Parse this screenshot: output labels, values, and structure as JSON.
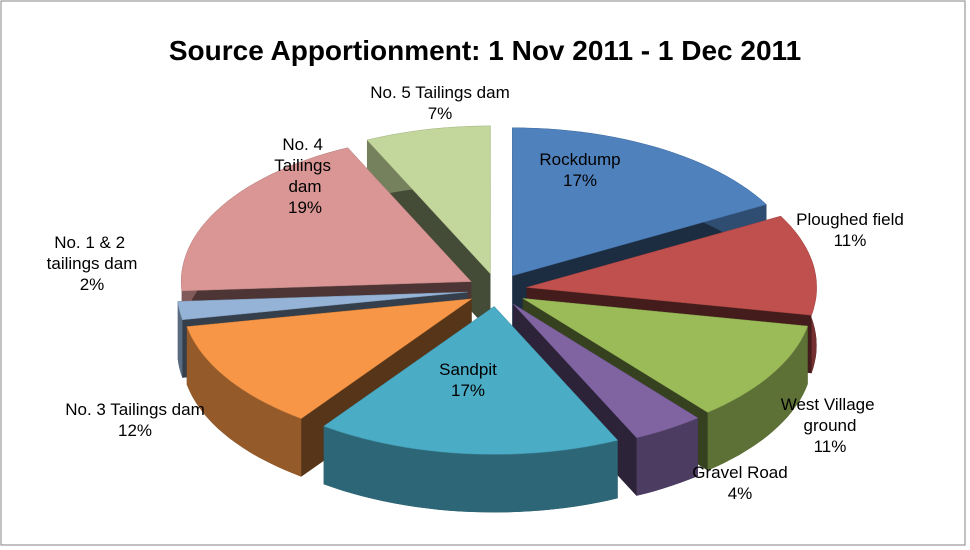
{
  "chart_data": {
    "type": "pie3d",
    "title": "Source Apportionment: 1 Nov 2011 - 1 Dec 2011",
    "categories": [
      "Rockdump",
      "Ploughed field",
      "West Village ground",
      "Gravel Road",
      "Sandpit",
      "No. 3 Tailings dam",
      "No. 1 & 2 tailings dam",
      "No. 4 Tailings dam",
      "No. 5 Tailings dam"
    ],
    "values": [
      17,
      11,
      11,
      4,
      17,
      12,
      2,
      19,
      7
    ],
    "value_labels": [
      "17%",
      "11%",
      "11%",
      "4%",
      "17%",
      "12%",
      "2%",
      "19%",
      "7%"
    ],
    "colors": [
      "#4f81bd",
      "#c0504d",
      "#9bbb59",
      "#8064a2",
      "#4bacc6",
      "#f79646",
      "#95b3d7",
      "#d99694",
      "#c3d69b"
    ]
  }
}
